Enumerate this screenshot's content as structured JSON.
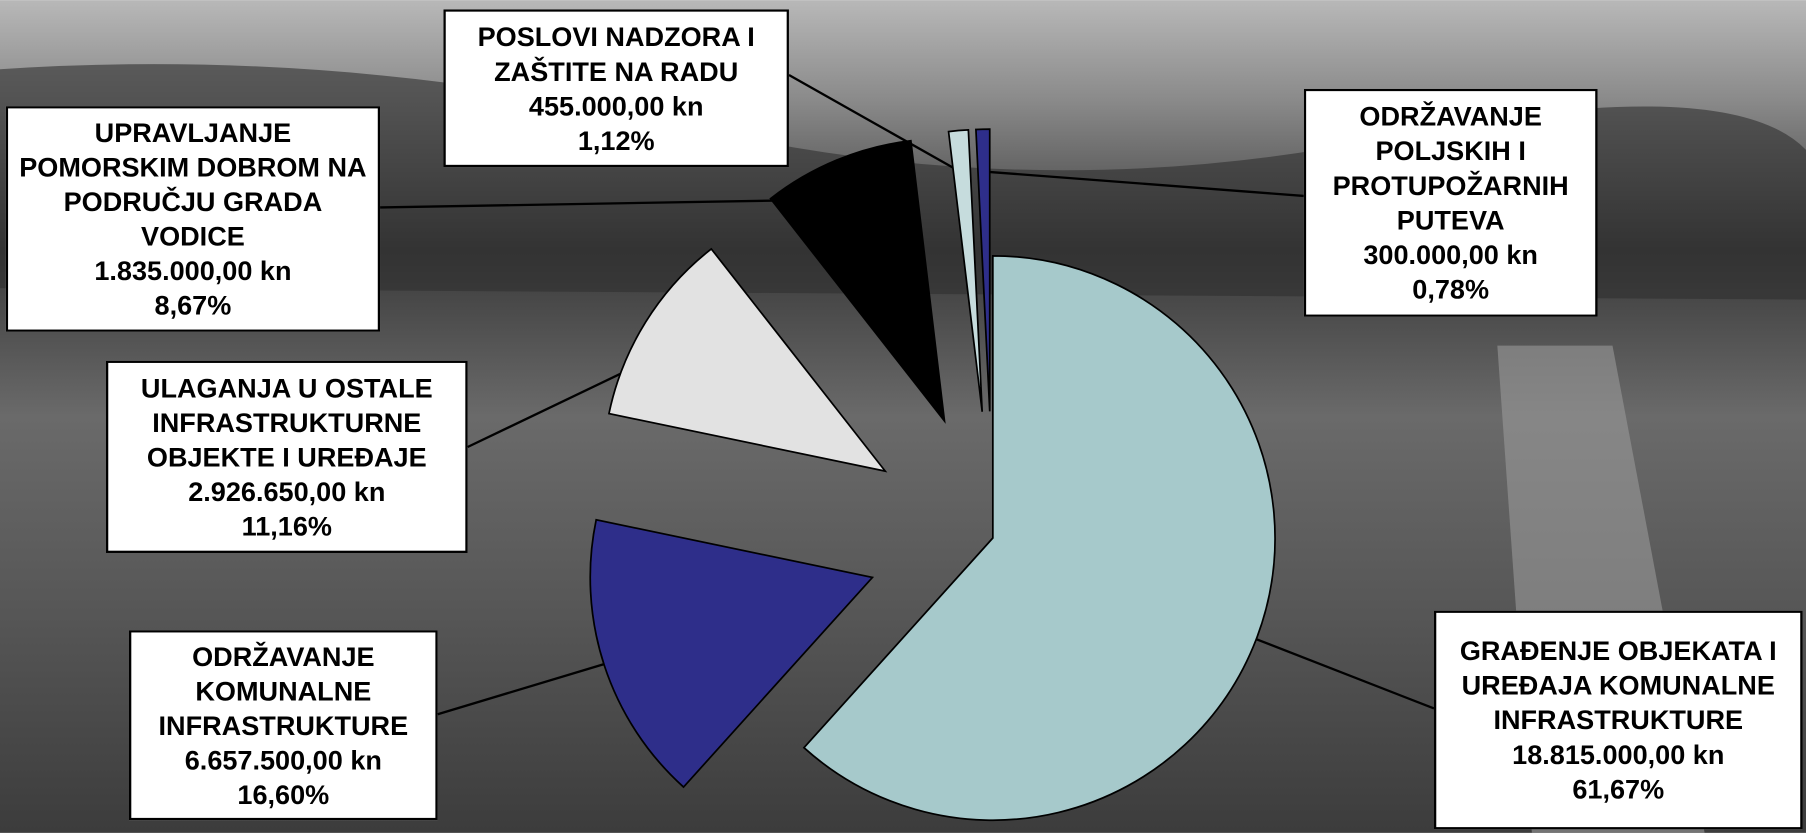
{
  "chart_data": {
    "type": "pie",
    "categories": [
      "GRAĐENJE OBJEKATA I UREĐAJA KOMUNALNE INFRASTRUKTURE",
      "ODRŽAVANJE KOMUNALNE INFRASTRUKTURE",
      "ULAGANJA U OSTALE INFRASTRUKTURNE OBJEKTE I UREĐAJE",
      "UPRAVLJANJE POMORSKIM DOBROM NA PODRUČJU GRADA VODICE",
      "POSLOVI NADZORA I ZAŠTITE NA RADU",
      "ODRŽAVANJE POLJSKIH I PROTUPOŽARNIH PUTEVA"
    ],
    "values": [
      61.67,
      16.6,
      11.16,
      8.67,
      1.12,
      0.78
    ],
    "value_labels": [
      "61,67%",
      "16,60%",
      "11,16%",
      "8,67%",
      "1,12%",
      "0,78%"
    ],
    "amount_labels": [
      "18.815.000,00 kn",
      "6.657.500,00 kn",
      "2.926.650,00 kn",
      "1.835.000,00 kn",
      "455.000,00 kn",
      "300.000,00 kn"
    ],
    "colors": [
      "#a6c9cb",
      "#2e2e8a",
      "#e2e2e2",
      "#000000",
      "#c6dcdd",
      "#2e2e8a"
    ]
  }
}
